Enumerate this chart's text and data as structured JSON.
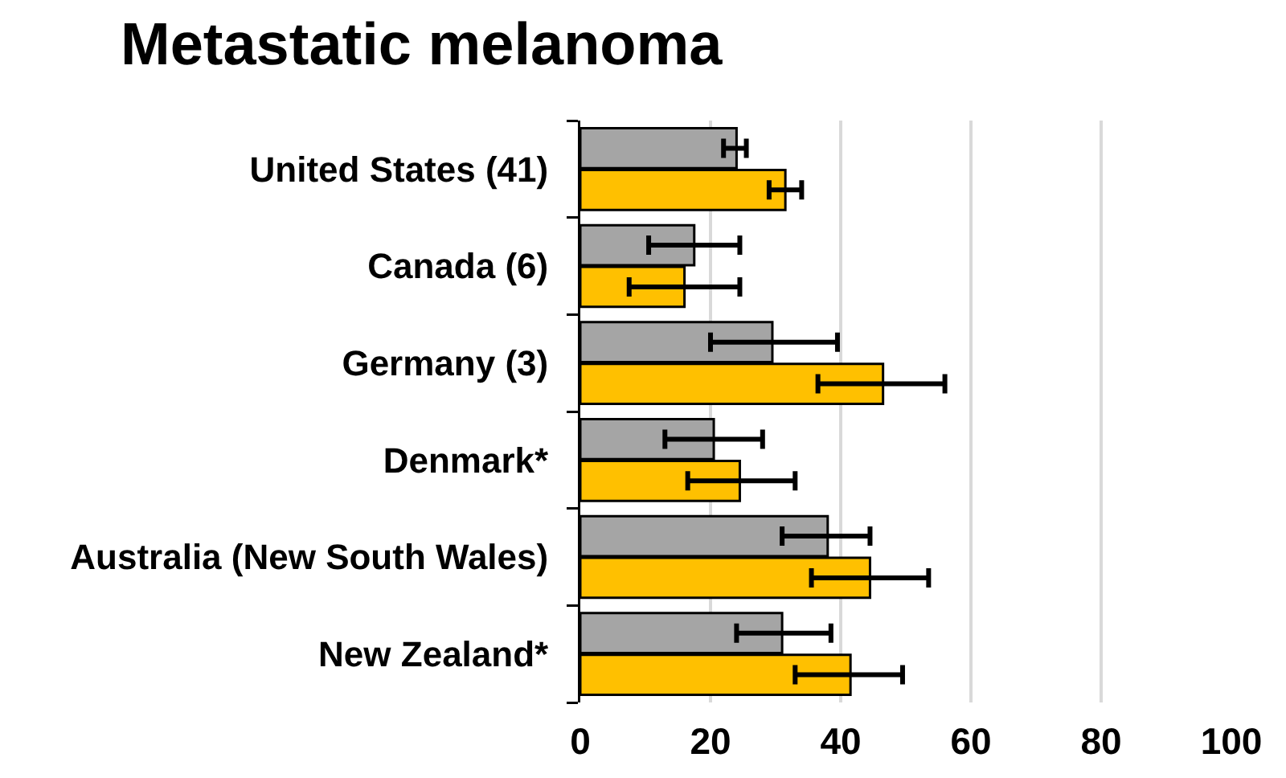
{
  "chart_data": {
    "type": "bar",
    "title": "Metastatic melanoma",
    "orientation": "horizontal",
    "categories": [
      "United States (41)",
      "Canada (6)",
      "Germany (3)",
      "Denmark*",
      "Australia (New South Wales)",
      "New Zealand*"
    ],
    "series": [
      {
        "color": "#a5a5a5",
        "values": [
          24,
          17.5,
          29.5,
          20.5,
          38,
          31
        ],
        "errors": [
          [
            22,
            25.5
          ],
          [
            10.5,
            24.5
          ],
          [
            20,
            39.5
          ],
          [
            13,
            28
          ],
          [
            31,
            44.5
          ],
          [
            24,
            38.5
          ]
        ]
      },
      {
        "color": "#ffc000",
        "values": [
          31.5,
          16,
          46.5,
          24.5,
          44.5,
          41.5
        ],
        "errors": [
          [
            29,
            34
          ],
          [
            7.5,
            24.5
          ],
          [
            36.5,
            56
          ],
          [
            16.5,
            33
          ],
          [
            35.5,
            53.5
          ],
          [
            33,
            49.5
          ]
        ]
      }
    ],
    "xlim": [
      0,
      100
    ],
    "xticks": [
      0,
      20,
      40,
      60,
      80,
      100
    ],
    "grid": "x"
  }
}
